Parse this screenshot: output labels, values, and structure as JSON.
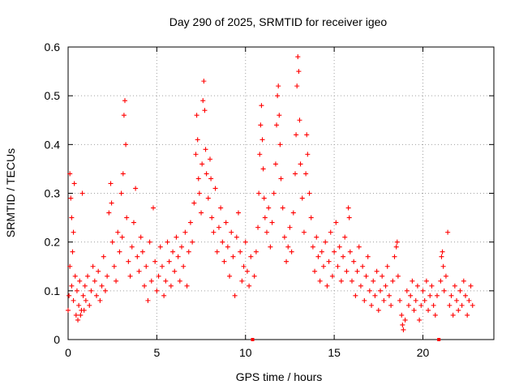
{
  "chart_data": {
    "type": "scatter",
    "title": "Day 290 of 2025, SRMTID for receiver igeo",
    "xlabel": "GPS time / hours",
    "ylabel": "SRMTID / TECUs",
    "xlim": [
      0,
      24
    ],
    "ylim": [
      0,
      0.6
    ],
    "x_ticks": [
      0,
      5,
      10,
      15,
      20
    ],
    "x_tick_labels": [
      "0",
      "5",
      "10",
      "15",
      "20"
    ],
    "y_ticks": [
      0,
      0.1,
      0.2,
      0.3,
      0.4,
      0.5,
      0.6
    ],
    "y_tick_labels": [
      "0",
      "0.1",
      "0.2",
      "0.3",
      "0.4",
      "0.5",
      "0.6"
    ],
    "grid": true,
    "marker": "+",
    "color": "#ff0000",
    "gap_markers_x": [
      10.4,
      20.9
    ],
    "series": [
      {
        "name": "SRMTID",
        "points": [
          [
            0.0,
            0.06
          ],
          [
            0.05,
            0.09
          ],
          [
            0.1,
            0.15
          ],
          [
            0.1,
            0.34
          ],
          [
            0.15,
            0.29
          ],
          [
            0.2,
            0.11
          ],
          [
            0.2,
            0.25
          ],
          [
            0.25,
            0.18
          ],
          [
            0.3,
            0.08
          ],
          [
            0.3,
            0.22
          ],
          [
            0.35,
            0.32
          ],
          [
            0.4,
            0.13
          ],
          [
            0.45,
            0.05
          ],
          [
            0.5,
            0.1
          ],
          [
            0.55,
            0.04
          ],
          [
            0.6,
            0.07
          ],
          [
            0.65,
            0.12
          ],
          [
            0.7,
            0.05
          ],
          [
            0.75,
            0.06
          ],
          [
            0.8,
            0.3
          ],
          [
            0.85,
            0.09
          ],
          [
            0.9,
            0.06
          ],
          [
            0.95,
            0.11
          ],
          [
            1.0,
            0.08
          ],
          [
            1.1,
            0.13
          ],
          [
            1.2,
            0.07
          ],
          [
            1.3,
            0.1
          ],
          [
            1.4,
            0.15
          ],
          [
            1.5,
            0.12
          ],
          [
            1.6,
            0.09
          ],
          [
            1.7,
            0.14
          ],
          [
            1.8,
            0.08
          ],
          [
            1.9,
            0.11
          ],
          [
            2.0,
            0.17
          ],
          [
            2.1,
            0.1
          ],
          [
            2.2,
            0.13
          ],
          [
            2.3,
            0.26
          ],
          [
            2.4,
            0.32
          ],
          [
            2.45,
            0.28
          ],
          [
            2.5,
            0.2
          ],
          [
            2.6,
            0.15
          ],
          [
            2.7,
            0.12
          ],
          [
            2.8,
            0.22
          ],
          [
            2.9,
            0.18
          ],
          [
            3.0,
            0.3
          ],
          [
            3.05,
            0.21
          ],
          [
            3.1,
            0.34
          ],
          [
            3.15,
            0.46
          ],
          [
            3.2,
            0.49
          ],
          [
            3.25,
            0.4
          ],
          [
            3.3,
            0.25
          ],
          [
            3.4,
            0.16
          ],
          [
            3.5,
            0.13
          ],
          [
            3.6,
            0.19
          ],
          [
            3.7,
            0.24
          ],
          [
            3.8,
            0.31
          ],
          [
            3.9,
            0.17
          ],
          [
            4.0,
            0.14
          ],
          [
            4.1,
            0.21
          ],
          [
            4.2,
            0.18
          ],
          [
            4.3,
            0.11
          ],
          [
            4.4,
            0.15
          ],
          [
            4.5,
            0.08
          ],
          [
            4.6,
            0.2
          ],
          [
            4.7,
            0.12
          ],
          [
            4.8,
            0.27
          ],
          [
            4.9,
            0.16
          ],
          [
            5.0,
            0.1
          ],
          [
            5.1,
            0.13
          ],
          [
            5.2,
            0.19
          ],
          [
            5.3,
            0.15
          ],
          [
            5.4,
            0.09
          ],
          [
            5.5,
            0.12
          ],
          [
            5.6,
            0.2
          ],
          [
            5.7,
            0.16
          ],
          [
            5.8,
            0.11
          ],
          [
            5.9,
            0.18
          ],
          [
            6.0,
            0.14
          ],
          [
            6.1,
            0.21
          ],
          [
            6.2,
            0.17
          ],
          [
            6.3,
            0.12
          ],
          [
            6.4,
            0.19
          ],
          [
            6.5,
            0.15
          ],
          [
            6.6,
            0.22
          ],
          [
            6.7,
            0.11
          ],
          [
            6.8,
            0.18
          ],
          [
            6.9,
            0.24
          ],
          [
            7.0,
            0.2
          ],
          [
            7.1,
            0.28
          ],
          [
            7.2,
            0.38
          ],
          [
            7.25,
            0.46
          ],
          [
            7.3,
            0.41
          ],
          [
            7.35,
            0.33
          ],
          [
            7.4,
            0.3
          ],
          [
            7.5,
            0.26
          ],
          [
            7.55,
            0.36
          ],
          [
            7.6,
            0.49
          ],
          [
            7.65,
            0.53
          ],
          [
            7.7,
            0.47
          ],
          [
            7.75,
            0.39
          ],
          [
            7.8,
            0.34
          ],
          [
            7.9,
            0.29
          ],
          [
            8.0,
            0.37
          ],
          [
            8.05,
            0.33
          ],
          [
            8.1,
            0.25
          ],
          [
            8.2,
            0.22
          ],
          [
            8.3,
            0.31
          ],
          [
            8.4,
            0.18
          ],
          [
            8.5,
            0.23
          ],
          [
            8.6,
            0.27
          ],
          [
            8.7,
            0.2
          ],
          [
            8.8,
            0.16
          ],
          [
            8.9,
            0.24
          ],
          [
            9.0,
            0.19
          ],
          [
            9.1,
            0.13
          ],
          [
            9.2,
            0.22
          ],
          [
            9.3,
            0.17
          ],
          [
            9.4,
            0.09
          ],
          [
            9.5,
            0.21
          ],
          [
            9.6,
            0.26
          ],
          [
            9.7,
            0.18
          ],
          [
            9.8,
            0.12
          ],
          [
            9.9,
            0.15
          ],
          [
            10.0,
            0.2
          ],
          [
            10.1,
            0.14
          ],
          [
            10.2,
            0.11
          ],
          [
            10.3,
            0.17
          ],
          [
            10.5,
            0.13
          ],
          [
            10.6,
            0.18
          ],
          [
            10.7,
            0.23
          ],
          [
            10.75,
            0.3
          ],
          [
            10.8,
            0.38
          ],
          [
            10.85,
            0.44
          ],
          [
            10.9,
            0.48
          ],
          [
            10.95,
            0.41
          ],
          [
            11.0,
            0.35
          ],
          [
            11.05,
            0.29
          ],
          [
            11.1,
            0.25
          ],
          [
            11.2,
            0.22
          ],
          [
            11.3,
            0.27
          ],
          [
            11.4,
            0.19
          ],
          [
            11.5,
            0.24
          ],
          [
            11.6,
            0.3
          ],
          [
            11.7,
            0.36
          ],
          [
            11.75,
            0.44
          ],
          [
            11.8,
            0.5
          ],
          [
            11.85,
            0.52
          ],
          [
            11.9,
            0.46
          ],
          [
            11.95,
            0.4
          ],
          [
            12.0,
            0.33
          ],
          [
            12.1,
            0.27
          ],
          [
            12.2,
            0.21
          ],
          [
            12.3,
            0.16
          ],
          [
            12.4,
            0.19
          ],
          [
            12.5,
            0.23
          ],
          [
            12.6,
            0.18
          ],
          [
            12.7,
            0.26
          ],
          [
            12.8,
            0.34
          ],
          [
            12.85,
            0.42
          ],
          [
            12.9,
            0.52
          ],
          [
            12.95,
            0.58
          ],
          [
            13.0,
            0.55
          ],
          [
            13.05,
            0.45
          ],
          [
            13.1,
            0.36
          ],
          [
            13.2,
            0.29
          ],
          [
            13.3,
            0.22
          ],
          [
            13.4,
            0.34
          ],
          [
            13.45,
            0.42
          ],
          [
            13.5,
            0.38
          ],
          [
            13.6,
            0.3
          ],
          [
            13.7,
            0.25
          ],
          [
            13.8,
            0.19
          ],
          [
            13.9,
            0.14
          ],
          [
            14.0,
            0.21
          ],
          [
            14.1,
            0.17
          ],
          [
            14.2,
            0.12
          ],
          [
            14.3,
            0.18
          ],
          [
            14.4,
            0.15
          ],
          [
            14.5,
            0.2
          ],
          [
            14.6,
            0.11
          ],
          [
            14.7,
            0.16
          ],
          [
            14.8,
            0.22
          ],
          [
            14.9,
            0.13
          ],
          [
            15.0,
            0.18
          ],
          [
            15.1,
            0.24
          ],
          [
            15.2,
            0.15
          ],
          [
            15.3,
            0.19
          ],
          [
            15.4,
            0.12
          ],
          [
            15.5,
            0.17
          ],
          [
            15.6,
            0.21
          ],
          [
            15.7,
            0.14
          ],
          [
            15.8,
            0.27
          ],
          [
            15.85,
            0.25
          ],
          [
            15.9,
            0.18
          ],
          [
            16.0,
            0.12
          ],
          [
            16.1,
            0.16
          ],
          [
            16.2,
            0.09
          ],
          [
            16.3,
            0.14
          ],
          [
            16.4,
            0.19
          ],
          [
            16.5,
            0.11
          ],
          [
            16.6,
            0.15
          ],
          [
            16.7,
            0.08
          ],
          [
            16.8,
            0.13
          ],
          [
            16.9,
            0.17
          ],
          [
            17.0,
            0.1
          ],
          [
            17.1,
            0.07
          ],
          [
            17.2,
            0.12
          ],
          [
            17.3,
            0.09
          ],
          [
            17.4,
            0.14
          ],
          [
            17.5,
            0.06
          ],
          [
            17.6,
            0.1
          ],
          [
            17.7,
            0.13
          ],
          [
            17.8,
            0.08
          ],
          [
            17.9,
            0.11
          ],
          [
            18.0,
            0.15
          ],
          [
            18.1,
            0.09
          ],
          [
            18.2,
            0.07
          ],
          [
            18.3,
            0.12
          ],
          [
            18.4,
            0.17
          ],
          [
            18.5,
            0.19
          ],
          [
            18.55,
            0.2
          ],
          [
            18.6,
            0.13
          ],
          [
            18.7,
            0.08
          ],
          [
            18.8,
            0.05
          ],
          [
            18.85,
            0.03
          ],
          [
            18.9,
            0.02
          ],
          [
            19.0,
            0.04
          ],
          [
            19.1,
            0.1
          ],
          [
            19.2,
            0.07
          ],
          [
            19.3,
            0.09
          ],
          [
            19.4,
            0.12
          ],
          [
            19.5,
            0.06
          ],
          [
            19.6,
            0.08
          ],
          [
            19.7,
            0.11
          ],
          [
            19.8,
            0.04
          ],
          [
            19.9,
            0.07
          ],
          [
            20.0,
            0.1
          ],
          [
            20.1,
            0.08
          ],
          [
            20.2,
            0.12
          ],
          [
            20.3,
            0.06
          ],
          [
            20.4,
            0.09
          ],
          [
            20.5,
            0.11
          ],
          [
            20.6,
            0.07
          ],
          [
            20.7,
            0.05
          ],
          [
            20.8,
            0.09
          ],
          [
            21.0,
            0.12
          ],
          [
            21.05,
            0.17
          ],
          [
            21.1,
            0.18
          ],
          [
            21.15,
            0.15
          ],
          [
            21.2,
            0.1
          ],
          [
            21.3,
            0.13
          ],
          [
            21.4,
            0.22
          ],
          [
            21.5,
            0.07
          ],
          [
            21.6,
            0.09
          ],
          [
            21.7,
            0.05
          ],
          [
            21.8,
            0.11
          ],
          [
            21.9,
            0.08
          ],
          [
            22.0,
            0.06
          ],
          [
            22.1,
            0.1
          ],
          [
            22.2,
            0.07
          ],
          [
            22.3,
            0.12
          ],
          [
            22.4,
            0.09
          ],
          [
            22.5,
            0.05
          ],
          [
            22.6,
            0.08
          ],
          [
            22.7,
            0.11
          ],
          [
            22.8,
            0.07
          ]
        ]
      }
    ]
  }
}
